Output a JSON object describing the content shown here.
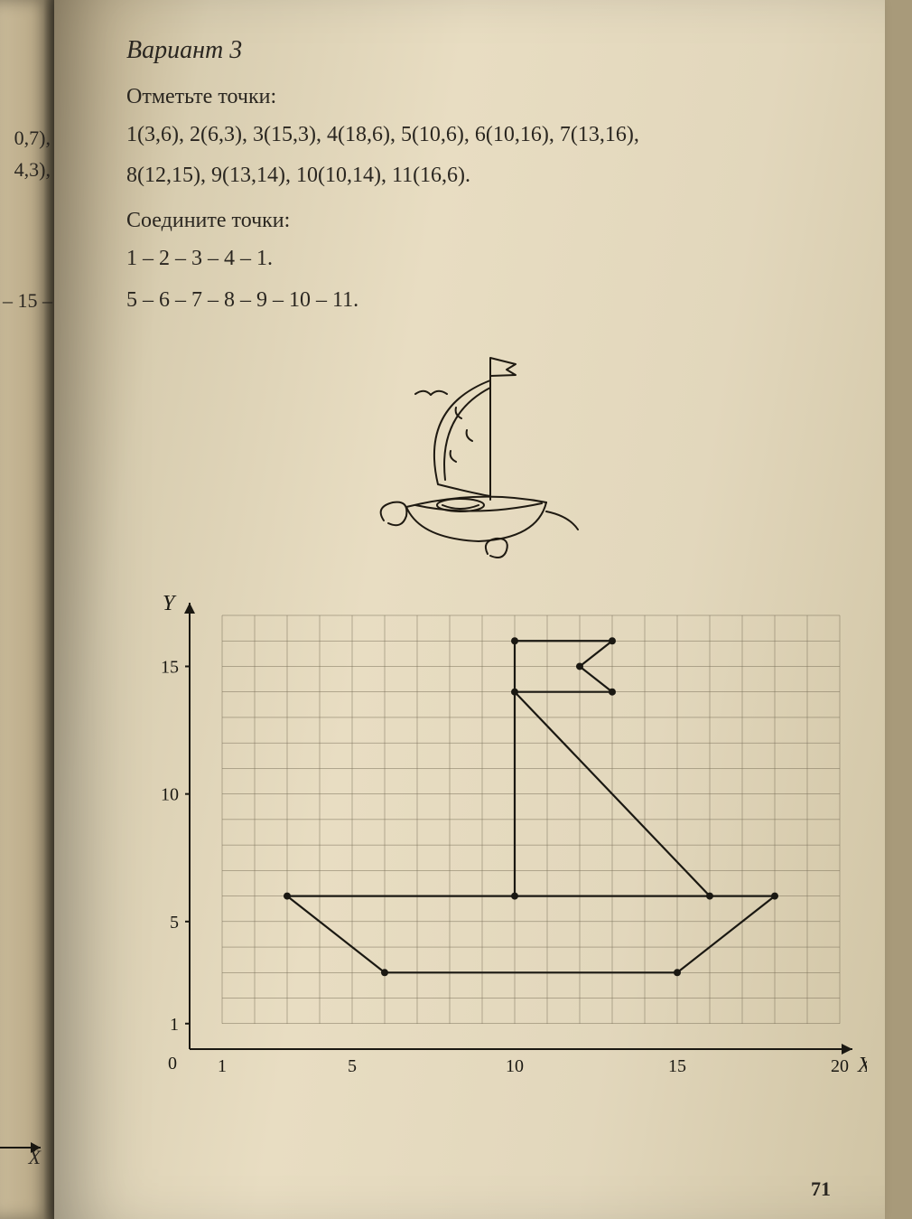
{
  "variant_title": "Вариант 3",
  "mark_points_label": "Отметьте точки:",
  "points_line1": "1(3,6), 2(6,3), 3(15,3), 4(18,6), 5(10,6), 6(10,16), 7(13,16),",
  "points_line2": "8(12,15), 9(13,14), 10(10,14), 11(16,6).",
  "connect_label": "Соедините точки:",
  "connect_line1": "1 – 2 – 3 – 4 – 1.",
  "connect_line2": "5 – 6 – 7 – 8 – 9 – 10 – 11.",
  "page_number": "71",
  "left_fragments": {
    "a": "0,7),",
    "b": "4,3),",
    "c": "– 15 –",
    "d": "X"
  },
  "chart": {
    "type": "coordinate-grid",
    "x_axis_label": "X",
    "y_axis_label": "Y",
    "origin_label": "0",
    "xlim": [
      0,
      20
    ],
    "ylim": [
      0,
      17
    ],
    "x_ticks": [
      1,
      5,
      10,
      15,
      20
    ],
    "y_ticks": [
      1,
      5,
      10,
      15
    ],
    "grid_step": 1,
    "grid_color": "#7a705a",
    "grid_width": 0.5,
    "axis_color": "#1a1812",
    "axis_width": 2,
    "tick_fontsize": 20,
    "label_fontsize": 24,
    "background_color": "transparent",
    "points": [
      {
        "id": 1,
        "x": 3,
        "y": 6
      },
      {
        "id": 2,
        "x": 6,
        "y": 3
      },
      {
        "id": 3,
        "x": 15,
        "y": 3
      },
      {
        "id": 4,
        "x": 18,
        "y": 6
      },
      {
        "id": 5,
        "x": 10,
        "y": 6
      },
      {
        "id": 6,
        "x": 10,
        "y": 16
      },
      {
        "id": 7,
        "x": 13,
        "y": 16
      },
      {
        "id": 8,
        "x": 12,
        "y": 15
      },
      {
        "id": 9,
        "x": 13,
        "y": 14
      },
      {
        "id": 10,
        "x": 10,
        "y": 14
      },
      {
        "id": 11,
        "x": 16,
        "y": 6
      }
    ],
    "point_radius": 4,
    "point_color": "#1a1812",
    "paths": [
      [
        1,
        2,
        3,
        4,
        1
      ],
      [
        5,
        6,
        7,
        8,
        9,
        10,
        11
      ]
    ],
    "path_stroke": "#1a1812",
    "path_width": 2.2
  },
  "illustration": {
    "stroke": "#1f1a12",
    "stroke_width": 2
  }
}
